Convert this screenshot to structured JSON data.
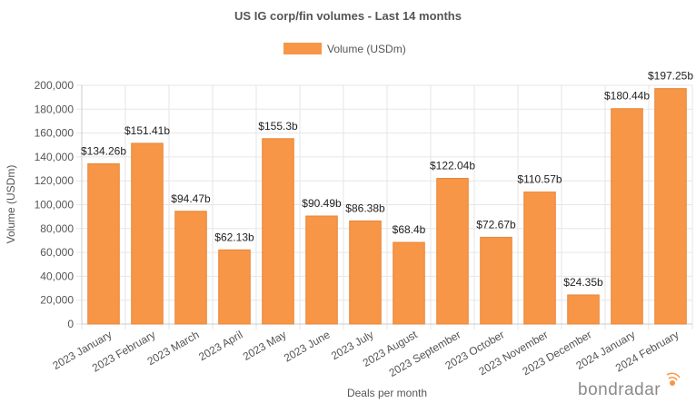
{
  "chart_data": {
    "type": "bar",
    "title": "US IG corp/fin volumes - Last 14 months",
    "xlabel": "Deals per month",
    "ylabel": "Volume (USDm)",
    "ylim": [
      0,
      200000
    ],
    "yticks": [
      0,
      20000,
      40000,
      60000,
      80000,
      100000,
      120000,
      140000,
      160000,
      180000,
      200000
    ],
    "ytick_labels": [
      "0",
      "20,000",
      "40,000",
      "60,000",
      "80,000",
      "100,000",
      "120,000",
      "140,000",
      "160,000",
      "180,000",
      "200,000"
    ],
    "grid": true,
    "legend_position": "top-center",
    "categories": [
      "2023 January",
      "2023 February",
      "2023 March",
      "2023 April",
      "2023 May",
      "2023 June",
      "2023 July",
      "2023 August",
      "2023 September",
      "2023 October",
      "2023 November",
      "2023 December",
      "2024 January",
      "2024 February"
    ],
    "series": [
      {
        "name": "Volume (USDm)",
        "color": "#f79646",
        "border_color": "#e8853a",
        "values": [
          134260,
          151410,
          94470,
          62130,
          155300,
          90490,
          86380,
          68400,
          122040,
          72670,
          110570,
          24350,
          180440,
          197250
        ],
        "data_labels": [
          "$134.26b",
          "$151.41b",
          "$94.47b",
          "$62.13b",
          "$155.3b",
          "$90.49b",
          "$86.38b",
          "$68.4b",
          "$122.04b",
          "$72.67b",
          "$110.57b",
          "$24.35b",
          "$180.44b",
          "$197.25b"
        ]
      }
    ]
  },
  "branding": {
    "logo_text": "bondradar",
    "logo_icon": "radar-dot-icon",
    "logo_accent_color": "#f79646"
  }
}
